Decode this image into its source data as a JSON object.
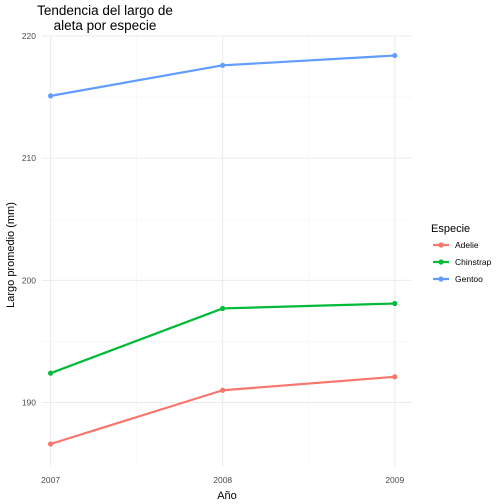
{
  "chart_data": {
    "type": "line",
    "title_lines": [
      "Tendencia del largo de",
      "aleta por especie"
    ],
    "xlabel": "Año",
    "ylabel": "Largo promedio (mm)",
    "x": [
      2007,
      2008,
      2009
    ],
    "x_tick_labels": [
      "2007",
      "2008",
      "2009"
    ],
    "xlim": [
      2006.95,
      2009.1
    ],
    "ylim": [
      184.8,
      220
    ],
    "y_ticks": [
      190,
      200,
      210,
      220
    ],
    "y_tick_labels": [
      "190",
      "200",
      "210",
      "220"
    ],
    "grid": true,
    "legend": {
      "title": "Especie",
      "position": "right"
    },
    "series": [
      {
        "name": "Adelie",
        "color": "#F8766D",
        "values": [
          186.6,
          191.0,
          192.1
        ]
      },
      {
        "name": "Chinstrap",
        "color": "#00BA38",
        "values": [
          192.4,
          197.7,
          198.1
        ]
      },
      {
        "name": "Gentoo",
        "color": "#619CFF",
        "values": [
          215.1,
          217.6,
          218.4
        ]
      }
    ]
  }
}
